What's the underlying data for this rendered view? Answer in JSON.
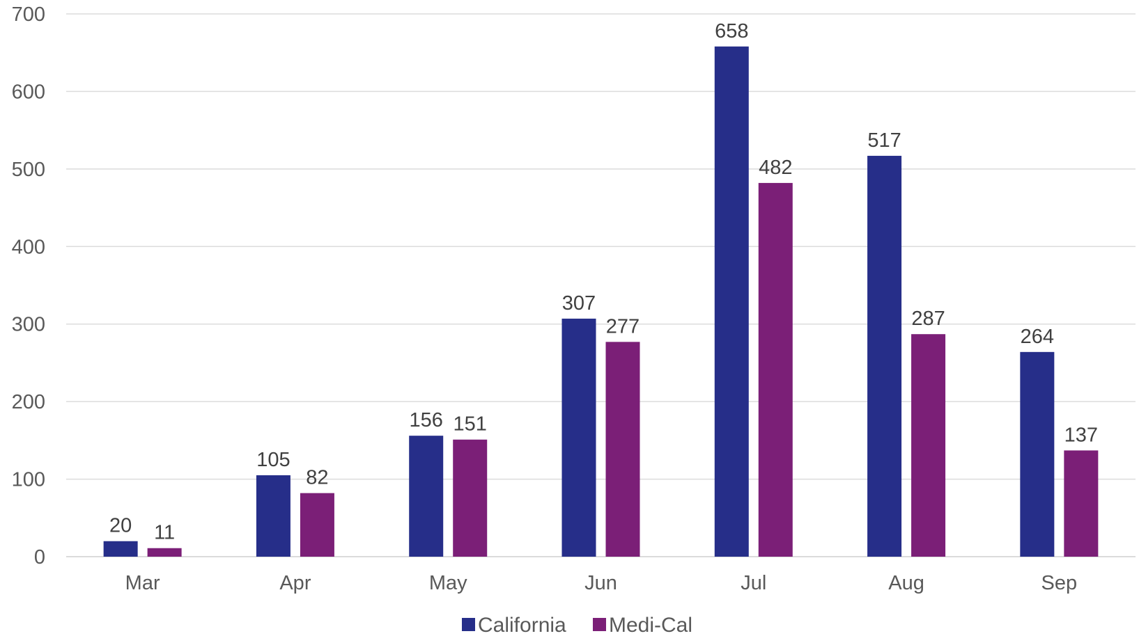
{
  "chart_data": {
    "type": "bar",
    "categories": [
      "Mar",
      "Apr",
      "May",
      "Jun",
      "Jul",
      "Aug",
      "Sep"
    ],
    "series": [
      {
        "name": "California",
        "values": [
          20,
          105,
          156,
          307,
          658,
          517,
          264
        ],
        "color": "#262E89"
      },
      {
        "name": "Medi-Cal",
        "values": [
          11,
          82,
          151,
          277,
          482,
          287,
          137
        ],
        "color": "#7B1F77"
      }
    ],
    "ylim": [
      0,
      700
    ],
    "yticks": [
      "0",
      "100",
      "200",
      "300",
      "400",
      "500",
      "600",
      "700"
    ],
    "grid": true,
    "legend_position": "bottom",
    "data_labels": true
  }
}
